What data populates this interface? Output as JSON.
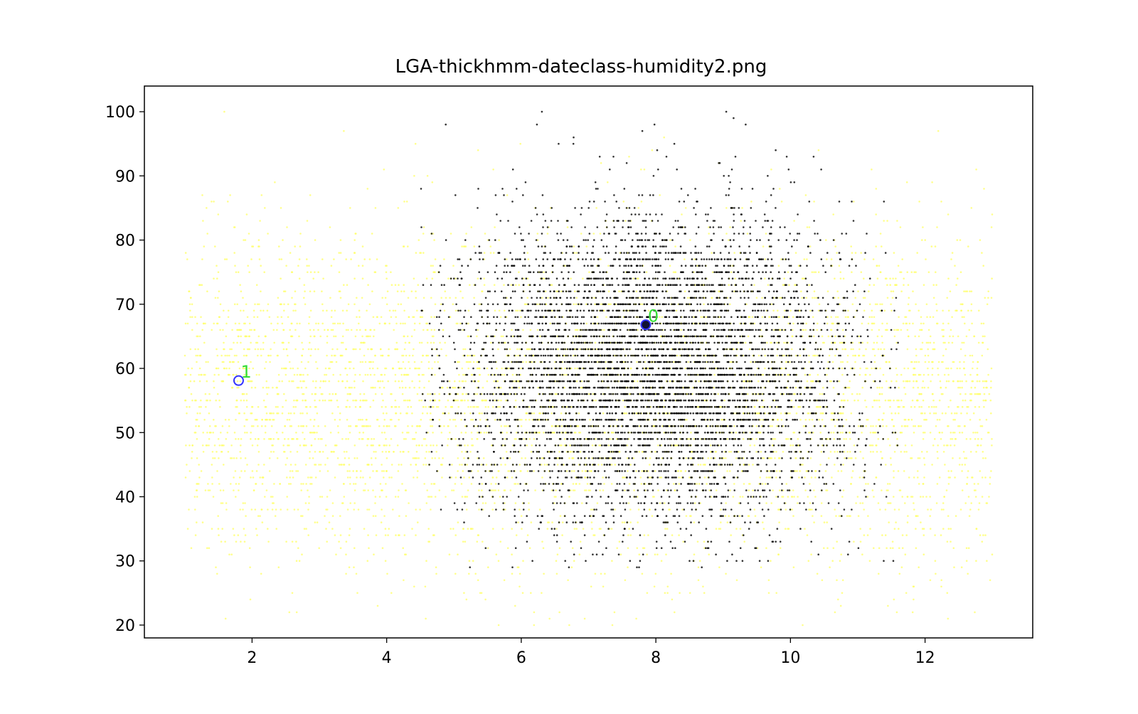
{
  "chart_data": {
    "type": "scatter",
    "title": "LGA-thickhmm-dateclass-humidity2.png",
    "xlabel": "",
    "ylabel": "",
    "xlim": [
      0.4,
      13.6
    ],
    "ylim": [
      18,
      104
    ],
    "xticks": [
      2,
      4,
      6,
      8,
      10,
      12
    ],
    "yticks": [
      20,
      30,
      40,
      50,
      60,
      70,
      80,
      90,
      100
    ],
    "grid": false,
    "legend": "none",
    "colors": {
      "class0_points": "#000000",
      "class1_points": "#ffff66",
      "centroid_marker": "#3333ff",
      "centroid_label": "#33dd33"
    },
    "series": [
      {
        "description_hidden": "",
        "x_range": [
          4.5,
          11.5
        ],
        "x_center": 8.0,
        "y_center": 60,
        "y_range": [
          29,
          100
        ]
      },
      {
        "x_range": [
          1.0,
          13.0
        ],
        "y_center": 55,
        "y_range": [
          20,
          100
        ]
      }
    ],
    "centroids": [
      {
        "label": "0",
        "x": 7.85,
        "y": 66.8,
        "filled": true
      },
      {
        "label": "1",
        "x": 1.8,
        "y": 58.1,
        "filled": false
      }
    ]
  }
}
